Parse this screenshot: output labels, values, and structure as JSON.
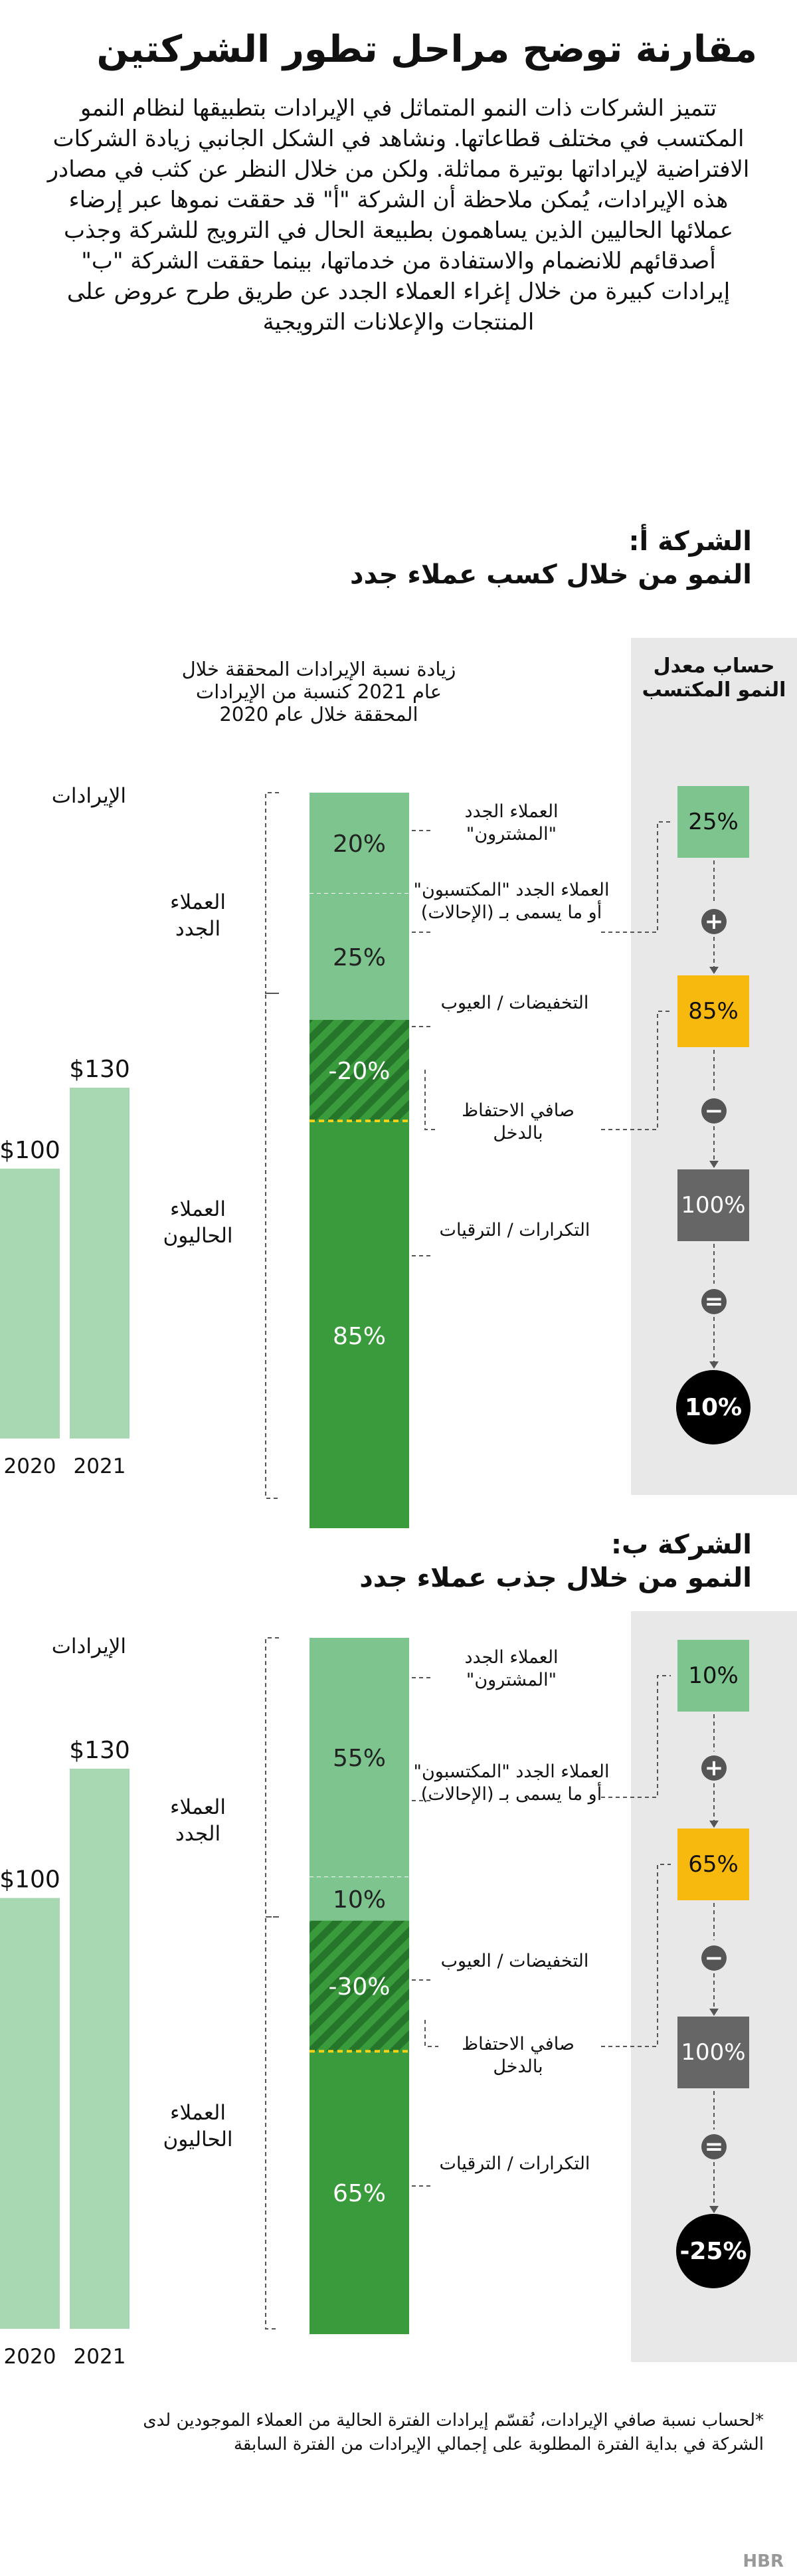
{
  "title": "مقارنة توضح مراحل تطور الشركتين",
  "intro": "تتميز الشركات ذات النمو المتماثل في الإيرادات بتطبيقها لنظام النمو المكتسب في مختلف قطاعاتها. ونشاهد في الشكل الجانبي زيادة الشركات الافتراضية لإيراداتها بوتيرة مماثلة. ولكن من خلال النظر عن كثب في مصادر هذه الإيرادات، يُمكن ملاحظة أن الشركة \"أ\" قد حققت نموها عبر إرضاء عملائها الحاليين الذين يساهمون بطبيعة الحال في الترويج للشركة وجذب أصدقائهم للانضمام والاستفادة من خدماتها، بينما حققت الشركة \"ب\" إيرادات كبيرة من خلال إغراء العملاء الجدد عن طريق طرح عروض على المنتجات والإعلانات الترويجية",
  "colors": {
    "light_green": "#7dc48e",
    "dark_green": "#3a9b3c",
    "revenue_bar": "#a8d8b1",
    "yellow": "#f8b90f",
    "gray": "#666666",
    "panel": "#e8e8e8",
    "divider": "#f2d11a"
  },
  "shared": {
    "column_header": "زيادة نسبة الإيرادات المحققة خلال عام 2021 كنسبة من الإيرادات المحققة خلال عام 2020",
    "calc_header": "حساب معدل النمو المكتسب",
    "revenue_label": "الإيرادات",
    "group_new": "العملاء الجدد",
    "group_existing": "العملاء الحاليون",
    "seg_buyers": "العملاء الجدد \"المشترون\"",
    "seg_referrals": "العملاء الجدد \"المكتسبون\" أو ما يسمى بـ (الإحالات)",
    "seg_discounts": "التخفيضات / العيوب",
    "seg_net": "صافي الاحتفاظ بالدخل",
    "seg_repeat": "التكرارات / الترقيات",
    "op_plus": "+",
    "op_minus": "−",
    "op_equals": "="
  },
  "footnote": "*لحساب نسبة صافي الإيرادات، نُقسّم إيرادات الفترة الحالية من العملاء الموجودين لدى الشركة في بداية الفترة المطلوبة على إجمالي الإيرادات من الفترة السابقة",
  "logo": "HBR",
  "chart_data": [
    {
      "type": "bar",
      "title": "الشركة أ:",
      "subtitle": "النمو من خلال كسب عملاء جدد",
      "revenue": {
        "categories": [
          "2020",
          "2021"
        ],
        "values": [
          100,
          130
        ],
        "labels": [
          "$100",
          "$130"
        ]
      },
      "stack": [
        {
          "name": "العملاء الجدد \"المشترون\"",
          "value": 20,
          "label": "20%"
        },
        {
          "name": "العملاء الجدد \"المكتسبون\" أو ما يسمى بـ (الإحالات)",
          "value": 25,
          "label": "25%"
        },
        {
          "name": "التخفيضات / العيوب",
          "value": -20,
          "label": "-20%"
        },
        {
          "name": "التكرارات / الترقيات",
          "value": 85,
          "label": "85%"
        }
      ],
      "calc": {
        "buyers": "25%",
        "net": "85%",
        "base": "100%",
        "result": "10%"
      }
    },
    {
      "type": "bar",
      "title": "الشركة ب:",
      "subtitle": "النمو من خلال جذب عملاء جدد",
      "revenue": {
        "categories": [
          "2020",
          "2021"
        ],
        "values": [
          100,
          130
        ],
        "labels": [
          "$100",
          "$130"
        ]
      },
      "stack": [
        {
          "name": "العملاء الجدد \"المشترون\"",
          "value": 55,
          "label": "55%"
        },
        {
          "name": "العملاء الجدد \"المكتسبون\" أو ما يسمى بـ (الإحالات)",
          "value": 10,
          "label": "10%"
        },
        {
          "name": "التخفيضات / العيوب",
          "value": -30,
          "label": "-30%"
        },
        {
          "name": "التكرارات / الترقيات",
          "value": 65,
          "label": "65%"
        }
      ],
      "calc": {
        "buyers": "10%",
        "net": "65%",
        "base": "100%",
        "result": "-25%"
      }
    }
  ]
}
